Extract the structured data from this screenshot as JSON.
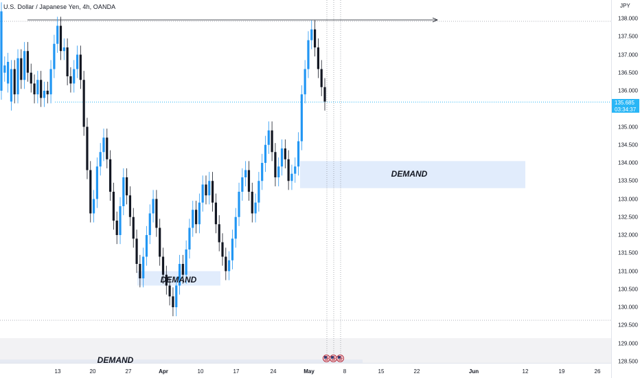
{
  "header": {
    "title": "U.S. Dollar / Japanese Yen, 4h, OANDA"
  },
  "price_axis": {
    "currency": "JPY",
    "ticks": [
      "138.000",
      "137.500",
      "137.000",
      "136.500",
      "136.000",
      "135.500",
      "135.000",
      "134.500",
      "134.000",
      "133.500",
      "133.000",
      "132.500",
      "132.000",
      "131.500",
      "131.000",
      "130.500",
      "130.000",
      "129.500",
      "129.000",
      "128.500"
    ],
    "last_price": "135.685",
    "countdown": "03:34:37"
  },
  "time_axis": {
    "ticks": [
      "13",
      "20",
      "27",
      "Apr",
      "10",
      "17",
      "24",
      "May",
      "8",
      "15",
      "22",
      "Jun",
      "12",
      "19",
      "26"
    ]
  },
  "zones": [
    {
      "label": "DEMAND"
    },
    {
      "label": "DEMAND"
    },
    {
      "label": "DEMAND"
    }
  ],
  "events": [
    {
      "icon": "us-flag-icon"
    },
    {
      "icon": "us-flag-icon"
    },
    {
      "icon": "us-flag-icon"
    }
  ],
  "colors": {
    "up": "#2196f3",
    "down": "#131722",
    "zone": "#dce9fb",
    "price_line": "#29b6f6",
    "grid": "#e0e3eb"
  },
  "chart_data": {
    "type": "candlestick",
    "symbol": "USDJPY",
    "timeframe": "4h",
    "ylim": [
      128.3,
      138.4
    ],
    "last": 135.685,
    "zones": [
      {
        "low": 133.3,
        "high": 134.05
      },
      {
        "low": 130.6,
        "high": 131.0
      },
      {
        "low": 128.25,
        "high": 128.55
      }
    ],
    "swing_high": 137.9,
    "series": [
      [
        136.0,
        138.2
      ],
      [
        136.5,
        136.7
      ],
      [
        136.2,
        136.8
      ],
      [
        135.7,
        136.6
      ],
      [
        136.6,
        135.9
      ],
      [
        135.9,
        136.9
      ],
      [
        136.9,
        136.3
      ],
      [
        136.3,
        137.1
      ],
      [
        137.1,
        136.5
      ],
      [
        136.5,
        136.2
      ],
      [
        136.2,
        135.9
      ],
      [
        135.9,
        136.3
      ],
      [
        136.3,
        135.8
      ],
      [
        135.8,
        136.0
      ],
      [
        136.0,
        135.9
      ],
      [
        135.9,
        136.6
      ],
      [
        136.6,
        137.3
      ],
      [
        137.3,
        137.8
      ],
      [
        137.8,
        137.1
      ],
      [
        137.1,
        137.2
      ],
      [
        137.2,
        136.4
      ],
      [
        136.4,
        136.2
      ],
      [
        136.2,
        136.6
      ],
      [
        136.6,
        137.0
      ],
      [
        137.0,
        136.3
      ],
      [
        136.3,
        135.0
      ],
      [
        135.0,
        133.8
      ],
      [
        133.8,
        132.6
      ],
      [
        132.6,
        133.0
      ],
      [
        133.0,
        133.9
      ],
      [
        133.9,
        134.3
      ],
      [
        134.3,
        134.7
      ],
      [
        134.7,
        134.1
      ],
      [
        134.1,
        133.2
      ],
      [
        133.2,
        132.4
      ],
      [
        132.4,
        132.0
      ],
      [
        132.0,
        132.8
      ],
      [
        132.8,
        133.6
      ],
      [
        133.6,
        133.1
      ],
      [
        133.1,
        132.5
      ],
      [
        132.5,
        131.9
      ],
      [
        131.9,
        131.2
      ],
      [
        131.2,
        130.8
      ],
      [
        130.8,
        131.4
      ],
      [
        131.4,
        132.0
      ],
      [
        132.0,
        132.6
      ],
      [
        132.6,
        133.0
      ],
      [
        133.0,
        132.2
      ],
      [
        132.2,
        131.4
      ],
      [
        131.4,
        130.9
      ],
      [
        130.9,
        130.6
      ],
      [
        130.6,
        130.3
      ],
      [
        130.3,
        130.0
      ],
      [
        130.0,
        130.6
      ],
      [
        130.6,
        131.2
      ],
      [
        131.2,
        130.9
      ],
      [
        130.9,
        131.6
      ],
      [
        131.6,
        132.2
      ],
      [
        132.2,
        132.7
      ],
      [
        132.7,
        132.3
      ],
      [
        132.3,
        132.9
      ],
      [
        132.9,
        133.4
      ],
      [
        133.4,
        133.1
      ],
      [
        133.1,
        133.5
      ],
      [
        133.5,
        132.9
      ],
      [
        132.9,
        132.3
      ],
      [
        132.3,
        131.8
      ],
      [
        131.8,
        131.4
      ],
      [
        131.4,
        131.0
      ],
      [
        131.0,
        131.3
      ],
      [
        131.3,
        131.9
      ],
      [
        131.9,
        132.5
      ],
      [
        132.5,
        133.2
      ],
      [
        133.2,
        133.6
      ],
      [
        133.6,
        133.8
      ],
      [
        133.8,
        133.2
      ],
      [
        133.2,
        132.6
      ],
      [
        132.6,
        132.9
      ],
      [
        132.9,
        133.5
      ],
      [
        133.5,
        134.0
      ],
      [
        134.0,
        134.5
      ],
      [
        134.5,
        134.9
      ],
      [
        134.9,
        134.3
      ],
      [
        134.3,
        133.6
      ],
      [
        133.6,
        133.9
      ],
      [
        133.9,
        134.4
      ],
      [
        134.4,
        134.1
      ],
      [
        134.1,
        133.5
      ],
      [
        133.5,
        133.7
      ],
      [
        133.7,
        133.9
      ],
      [
        133.9,
        134.6
      ],
      [
        134.6,
        135.9
      ],
      [
        135.9,
        136.6
      ],
      [
        136.6,
        137.4
      ],
      [
        137.4,
        137.7
      ],
      [
        137.7,
        137.2
      ],
      [
        137.2,
        136.6
      ],
      [
        136.6,
        136.1
      ],
      [
        136.1,
        135.7
      ]
    ]
  }
}
